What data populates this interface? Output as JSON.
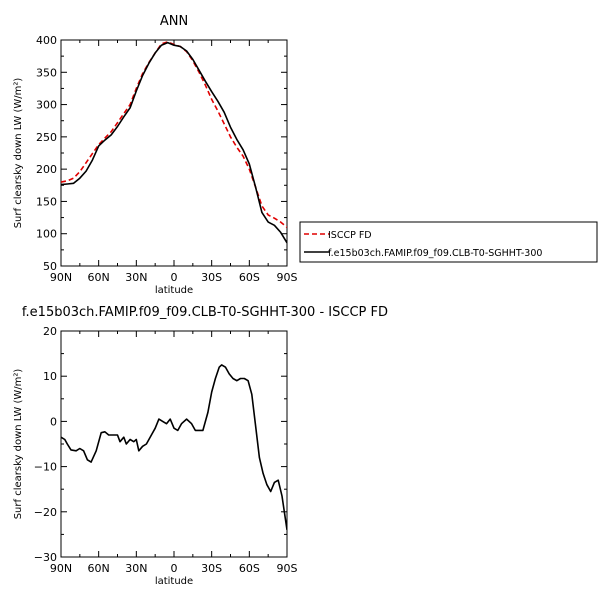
{
  "chart_data": [
    {
      "type": "line",
      "title": "ANN",
      "xlabel": "latitude",
      "ylabel": "Surf clearsky down LW (W/m²)",
      "xlim": [
        -90,
        90
      ],
      "ylim": [
        50,
        400
      ],
      "xticks": [
        -90,
        -60,
        -30,
        0,
        30,
        60,
        90
      ],
      "xtick_labels": [
        "90N",
        "60N",
        "30N",
        "0",
        "30S",
        "60S",
        "90S"
      ],
      "yticks": [
        50,
        100,
        150,
        200,
        250,
        300,
        350,
        400
      ],
      "ytick_labels": [
        "50",
        "100",
        "150",
        "200",
        "250",
        "300",
        "350",
        "400"
      ],
      "legend_position": "right, outside the plot",
      "series": [
        {
          "name": "ISCCP FD",
          "color": "#e00000",
          "dash": "dashed",
          "x": [
            -90,
            -85,
            -80,
            -75,
            -70,
            -65,
            -60,
            -55,
            -50,
            -45,
            -40,
            -35,
            -30,
            -25,
            -20,
            -15,
            -10,
            -5,
            0,
            5,
            10,
            15,
            20,
            25,
            30,
            35,
            40,
            45,
            50,
            55,
            60,
            65,
            70,
            75,
            80,
            85,
            90
          ],
          "values": [
            180,
            182,
            186,
            196,
            210,
            224,
            238,
            248,
            258,
            272,
            286,
            300,
            325,
            348,
            365,
            380,
            394,
            397,
            393,
            390,
            382,
            368,
            350,
            330,
            308,
            290,
            270,
            250,
            234,
            220,
            200,
            172,
            143,
            129,
            124,
            118,
            110
          ]
        },
        {
          "name": "f.e15b03ch.FAMIP.f09_f09.CLB-T0-SGHHT-300",
          "color": "#000000",
          "dash": "solid",
          "x": [
            -90,
            -85,
            -80,
            -75,
            -70,
            -65,
            -60,
            -55,
            -50,
            -45,
            -40,
            -35,
            -30,
            -25,
            -20,
            -15,
            -10,
            -5,
            0,
            5,
            10,
            15,
            20,
            25,
            30,
            35,
            40,
            45,
            50,
            55,
            60,
            65,
            70,
            75,
            80,
            85,
            90
          ],
          "values": [
            176,
            177,
            178,
            186,
            197,
            214,
            236,
            245,
            253,
            266,
            281,
            295,
            321,
            345,
            364,
            380,
            392,
            396,
            392,
            390,
            383,
            370,
            353,
            336,
            320,
            305,
            288,
            265,
            246,
            230,
            208,
            172,
            133,
            118,
            113,
            102,
            86
          ]
        }
      ]
    },
    {
      "type": "line",
      "title": "f.e15b03ch.FAMIP.f09_f09.CLB-T0-SGHHT-300 - ISCCP FD",
      "xlabel": "latitude",
      "ylabel": "Surf clearsky down LW (W/m²)",
      "xlim": [
        -90,
        90
      ],
      "ylim": [
        -30,
        20
      ],
      "xticks": [
        -90,
        -60,
        -30,
        0,
        30,
        60,
        90
      ],
      "xtick_labels": [
        "90N",
        "60N",
        "30N",
        "0",
        "30S",
        "60S",
        "90S"
      ],
      "yticks": [
        -30,
        -20,
        -10,
        0,
        10,
        20
      ],
      "ytick_labels": [
        "−30",
        "−20",
        "−10",
        "0",
        "10",
        "20"
      ],
      "series": [
        {
          "color": "#000000",
          "dash": "solid",
          "x": [
            -90,
            -87,
            -85,
            -82,
            -78,
            -75,
            -72,
            -69,
            -66,
            -62,
            -58,
            -55,
            -52,
            -48,
            -45,
            -43,
            -40,
            -38,
            -35,
            -32,
            -30,
            -28,
            -25,
            -22,
            -18,
            -15,
            -12,
            -9,
            -6,
            -3,
            0,
            3,
            6,
            10,
            14,
            17,
            20,
            23,
            27,
            30,
            33,
            36,
            38,
            41,
            44,
            47,
            50,
            53,
            56,
            59,
            62,
            65,
            68,
            71,
            74,
            77,
            80,
            83,
            86,
            90
          ],
          "values": [
            -3.5,
            -4.0,
            -5.0,
            -6.3,
            -6.5,
            -6.0,
            -6.5,
            -8.5,
            -9.0,
            -6.5,
            -2.5,
            -2.3,
            -3.0,
            -3.0,
            -3.0,
            -4.5,
            -3.5,
            -5.0,
            -4.0,
            -4.5,
            -4.0,
            -6.5,
            -5.5,
            -5.0,
            -3.0,
            -1.5,
            0.5,
            0.0,
            -0.5,
            0.5,
            -1.5,
            -2.0,
            -0.5,
            0.5,
            -0.5,
            -2.0,
            -2.0,
            -2.0,
            2.0,
            6.5,
            9.5,
            12.0,
            12.5,
            12.0,
            10.5,
            9.5,
            9.0,
            9.5,
            9.5,
            9.0,
            6.0,
            -1.0,
            -8.0,
            -11.5,
            -14.0,
            -15.5,
            -13.5,
            -13.0,
            -16.5,
            -24.0
          ]
        }
      ]
    }
  ]
}
